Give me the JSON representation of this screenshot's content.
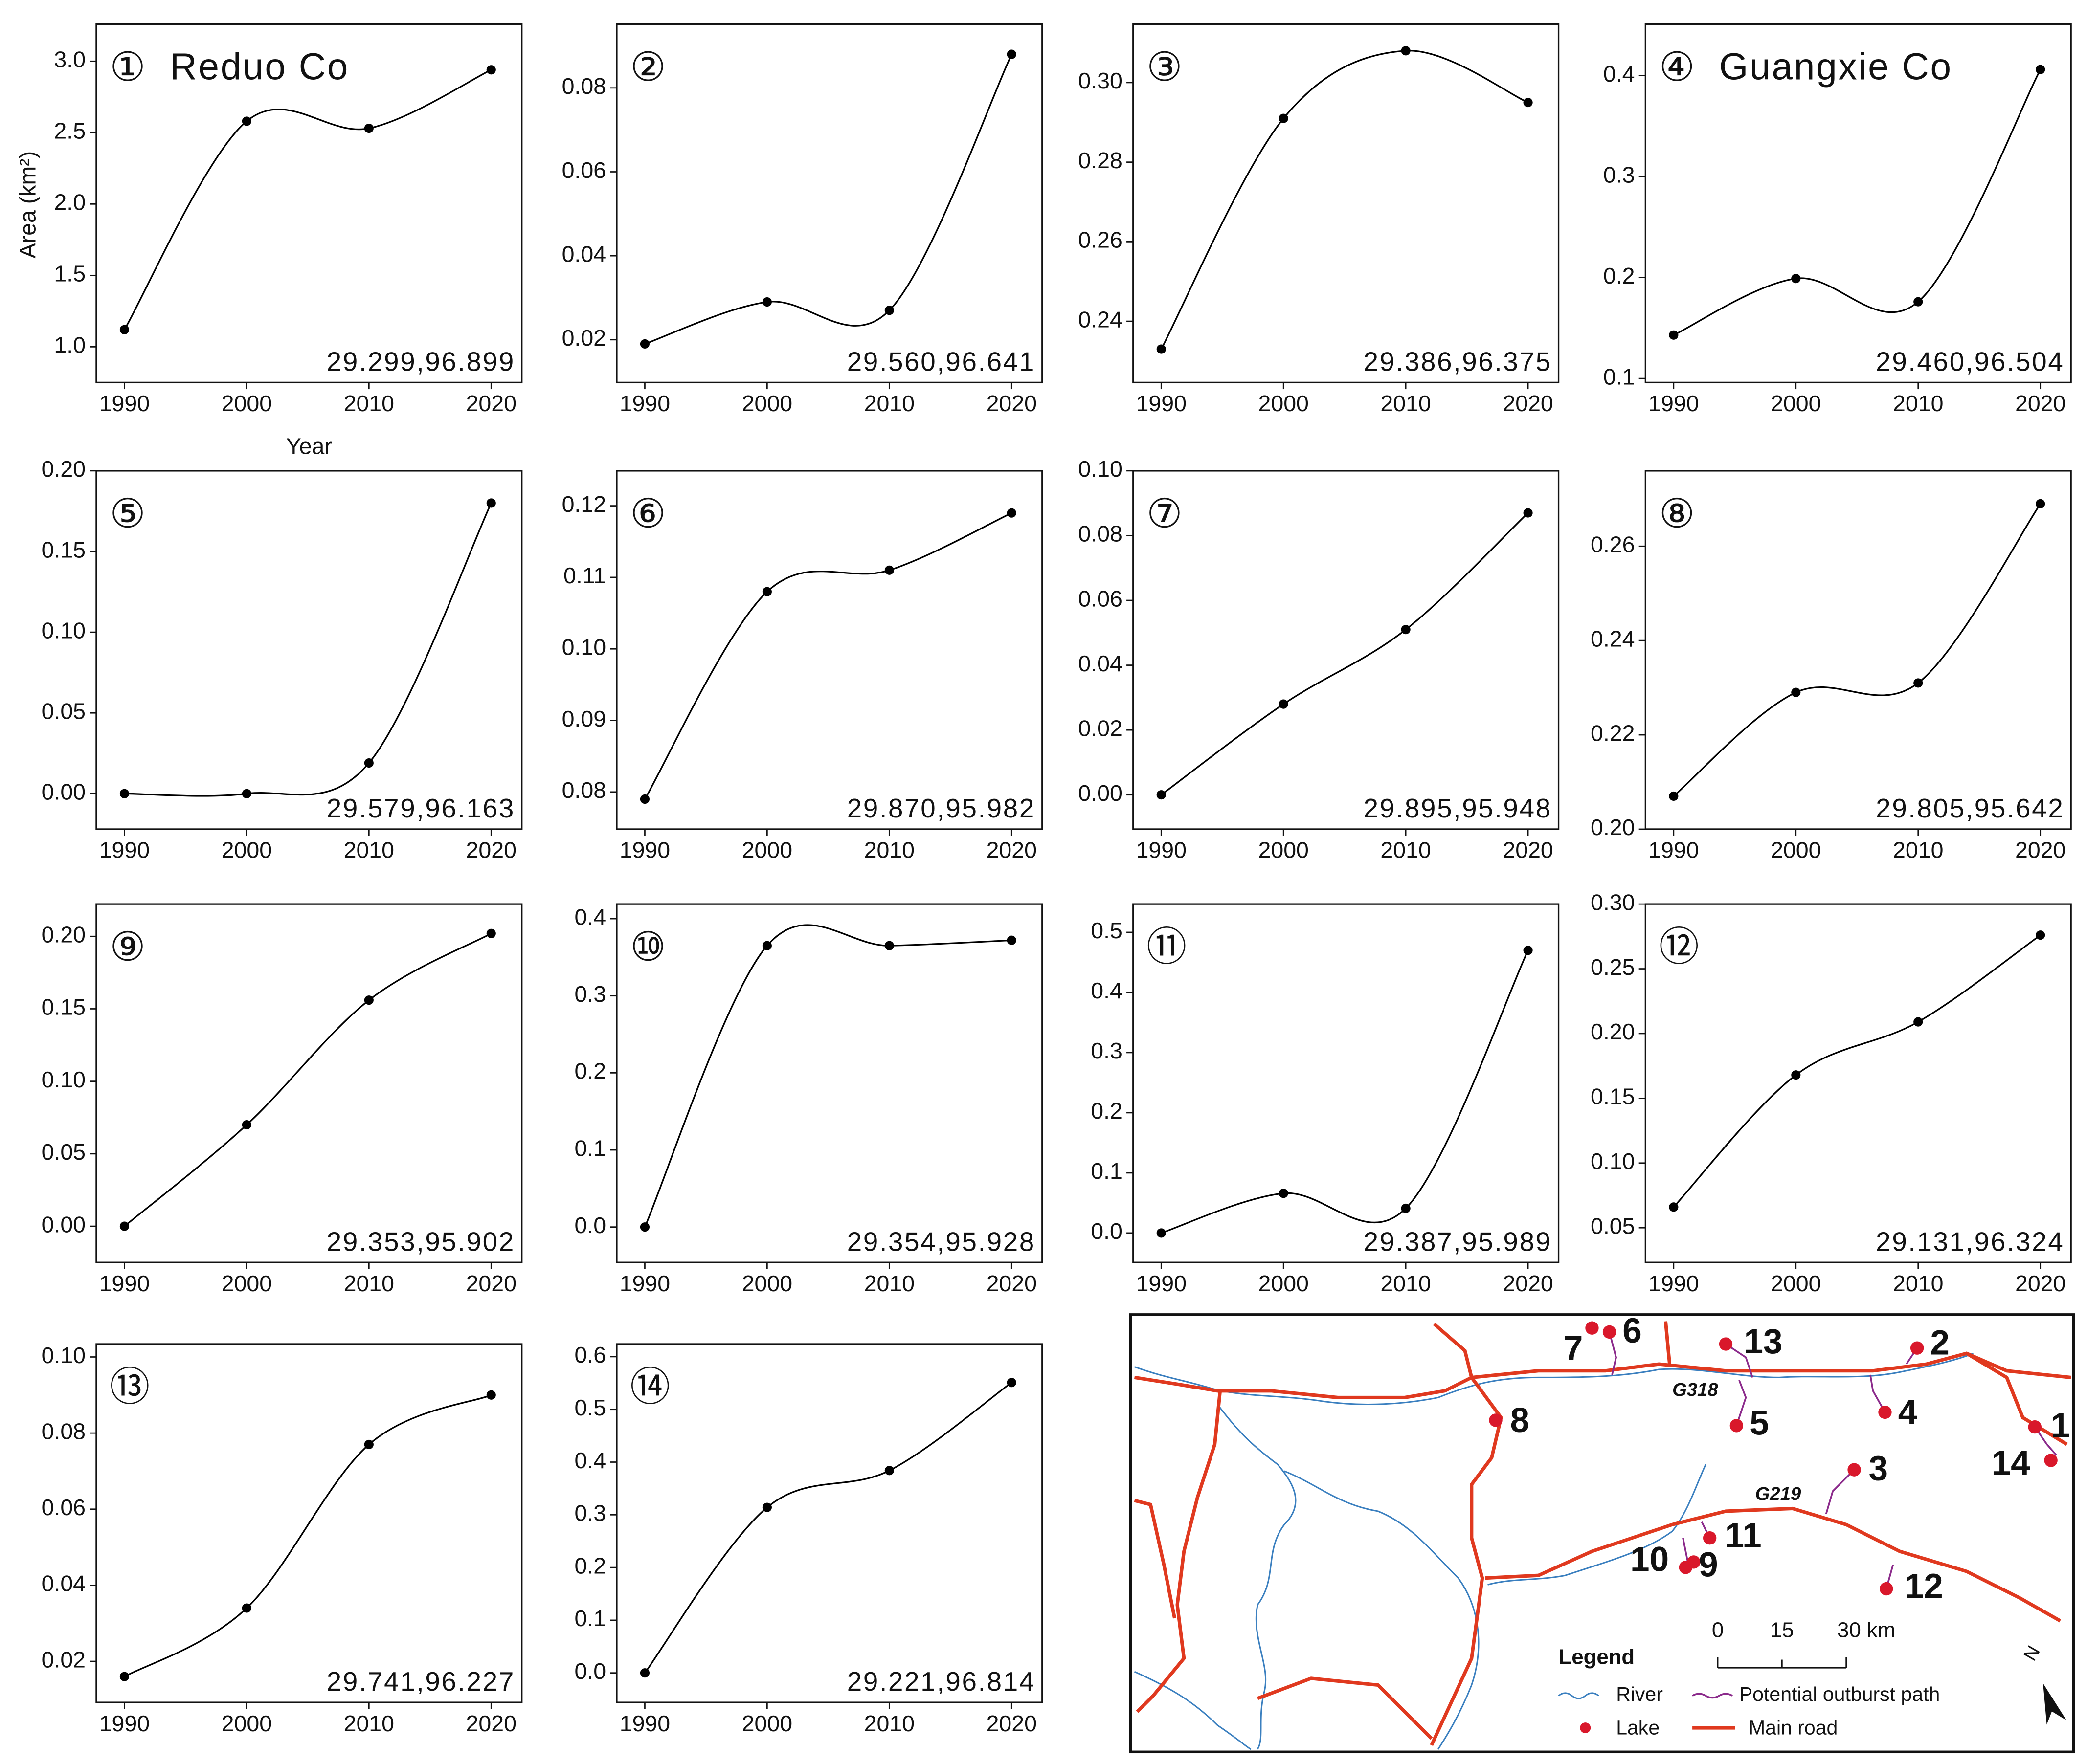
{
  "chart_data": [
    {
      "type": "line",
      "label": "①",
      "title": "Reduo Co",
      "annotation": "29.299,96.899",
      "ylabel": "Area (km²)",
      "xlabel": "Year",
      "x": [
        1990,
        2000,
        2010,
        2020
      ],
      "values": [
        1.12,
        2.58,
        2.53,
        2.94
      ],
      "color": "#000000",
      "xlim": [
        1987.7,
        2022.5
      ],
      "xticks": [
        1990,
        2000,
        2010,
        2020
      ],
      "ylim": [
        0.75,
        3.26
      ],
      "yticks": [
        {
          "value": 1,
          "label": "1.0"
        },
        1.5,
        {
          "value": 2,
          "label": "2.0"
        },
        2.5,
        {
          "value": 3,
          "label": "3.0"
        }
      ]
    },
    {
      "type": "line",
      "label": "②",
      "annotation": "29.560,96.641",
      "x": [
        1990,
        2000,
        2010,
        2020
      ],
      "values": [
        0.019,
        0.029,
        0.027,
        0.088
      ],
      "color": "#000000",
      "xlim": [
        1987.7,
        2022.5
      ],
      "xticks": [
        1990,
        2000,
        2010,
        2020
      ],
      "ylim": [
        0.0098,
        0.0952
      ],
      "yticks": [
        0.02,
        0.04,
        0.06,
        0.08
      ]
    },
    {
      "type": "line",
      "label": "③",
      "annotation": "29.386,96.375",
      "x": [
        1990,
        2000,
        2010,
        2020
      ],
      "values": [
        0.233,
        0.291,
        0.308,
        0.295
      ],
      "color": "#000000",
      "xlim": [
        1987.7,
        2022.5
      ],
      "xticks": [
        1990,
        2000,
        2010,
        2020
      ],
      "ylim": [
        0.2246,
        0.3147
      ],
      "yticks": [
        0.24,
        0.26,
        0.28,
        {
          "value": 0.3,
          "label": "0.30"
        }
      ]
    },
    {
      "type": "line",
      "label": "④",
      "title": "Guangxie Co",
      "annotation": "29.460,96.504",
      "x": [
        1990,
        2000,
        2010,
        2020
      ],
      "values": [
        0.143,
        0.199,
        0.176,
        0.406
      ],
      "color": "#000000",
      "xlim": [
        1987.7,
        2022.5
      ],
      "xticks": [
        1990,
        2000,
        2010,
        2020
      ],
      "ylim": [
        0.096,
        0.451
      ],
      "yticks": [
        0.1,
        0.2,
        0.3,
        0.4
      ]
    },
    {
      "type": "line",
      "label": "⑤",
      "annotation": "29.579,96.163",
      "x": [
        1990,
        2000,
        2010,
        2020
      ],
      "values": [
        0,
        0,
        0.019,
        0.18
      ],
      "color": "#000000",
      "xlim": [
        1987.7,
        2022.5
      ],
      "xticks": [
        1990,
        2000,
        2010,
        2020
      ],
      "ylim": [
        -0.022,
        0.2
      ],
      "yticks": [
        {
          "value": 0,
          "label": "0.00"
        },
        0.05,
        {
          "value": 0.1,
          "label": "0.10"
        },
        0.15,
        {
          "value": 0.2,
          "label": "0.20"
        }
      ]
    },
    {
      "type": "line",
      "label": "⑥",
      "annotation": "29.870,95.982",
      "x": [
        1990,
        2000,
        2010,
        2020
      ],
      "values": [
        0.079,
        0.108,
        0.111,
        0.119
      ],
      "color": "#000000",
      "xlim": [
        1987.7,
        2022.5
      ],
      "xticks": [
        1990,
        2000,
        2010,
        2020
      ],
      "ylim": [
        0.0748,
        0.1249
      ],
      "yticks": [
        0.08,
        0.09,
        {
          "value": 0.1,
          "label": "0.10"
        },
        0.11,
        0.12
      ]
    },
    {
      "type": "line",
      "label": "⑦",
      "annotation": "29.895,95.948",
      "x": [
        1990,
        2000,
        2010,
        2020
      ],
      "values": [
        0,
        0.028,
        0.051,
        0.087
      ],
      "color": "#000000",
      "xlim": [
        1987.7,
        2022.5
      ],
      "xticks": [
        1990,
        2000,
        2010,
        2020
      ],
      "ylim": [
        -0.0106,
        0.1
      ],
      "yticks": [
        {
          "value": 0,
          "label": "0.00"
        },
        0.02,
        0.04,
        0.06,
        0.08,
        {
          "value": 0.1,
          "label": "0.10"
        }
      ]
    },
    {
      "type": "line",
      "label": "⑧",
      "annotation": "29.805,95.642",
      "x": [
        1990,
        2000,
        2010,
        2020
      ],
      "values": [
        0.207,
        0.229,
        0.231,
        0.269
      ],
      "color": "#000000",
      "xlim": [
        1987.7,
        2022.5
      ],
      "xticks": [
        1990,
        2000,
        2010,
        2020
      ],
      "ylim": [
        0.2,
        0.276
      ],
      "yticks": [
        {
          "value": 0.2,
          "label": "0.20"
        },
        0.22,
        0.24,
        0.26
      ]
    },
    {
      "type": "line",
      "label": "⑨",
      "annotation": "29.353,95.902",
      "x": [
        1990,
        2000,
        2010,
        2020
      ],
      "values": [
        0,
        0.07,
        0.156,
        0.202
      ],
      "color": "#000000",
      "xlim": [
        1987.7,
        2022.5
      ],
      "xticks": [
        1990,
        2000,
        2010,
        2020
      ],
      "ylim": [
        -0.025,
        0.2223
      ],
      "yticks": [
        {
          "value": 0,
          "label": "0.00"
        },
        0.05,
        {
          "value": 0.1,
          "label": "0.10"
        },
        0.15,
        {
          "value": 0.2,
          "label": "0.20"
        }
      ]
    },
    {
      "type": "line",
      "label": "⑩",
      "annotation": "29.354,95.928",
      "x": [
        1990,
        2000,
        2010,
        2020
      ],
      "values": [
        0,
        0.365,
        0.365,
        0.372
      ],
      "color": "#000000",
      "xlim": [
        1987.7,
        2022.5
      ],
      "xticks": [
        1990,
        2000,
        2010,
        2020
      ],
      "ylim": [
        -0.046,
        0.419
      ],
      "yticks": [
        {
          "value": 0,
          "label": "0.0"
        },
        0.1,
        0.2,
        0.3,
        0.4
      ]
    },
    {
      "type": "line",
      "label": "⑪",
      "annotation": "29.387,95.989",
      "x": [
        1990,
        2000,
        2010,
        2020
      ],
      "values": [
        0,
        0.066,
        0.041,
        0.47
      ],
      "color": "#000000",
      "xlim": [
        1987.7,
        2022.5
      ],
      "xticks": [
        1990,
        2000,
        2010,
        2020
      ],
      "ylim": [
        -0.049,
        0.547
      ],
      "yticks": [
        {
          "value": 0,
          "label": "0.0"
        },
        0.1,
        0.2,
        0.3,
        0.4,
        0.5
      ]
    },
    {
      "type": "line",
      "label": "⑫",
      "annotation": "29.131,96.324",
      "x": [
        1990,
        2000,
        2010,
        2020
      ],
      "values": [
        0.066,
        0.168,
        0.209,
        0.276
      ],
      "color": "#000000",
      "xlim": [
        1987.7,
        2022.5
      ],
      "xticks": [
        1990,
        2000,
        2010,
        2020
      ],
      "ylim": [
        0.0232,
        0.3
      ],
      "yticks": [
        0.05,
        {
          "value": 0.1,
          "label": "0.10"
        },
        0.15,
        {
          "value": 0.2,
          "label": "0.20"
        },
        0.25,
        {
          "value": 0.3,
          "label": "0.30"
        }
      ]
    },
    {
      "type": "line",
      "label": "⑬",
      "annotation": "29.741,96.227",
      "x": [
        1990,
        2000,
        2010,
        2020
      ],
      "values": [
        0.016,
        0.034,
        0.077,
        0.09
      ],
      "color": "#000000",
      "xlim": [
        1987.7,
        2022.5
      ],
      "xticks": [
        1990,
        2000,
        2010,
        2020
      ],
      "ylim": [
        0.0092,
        0.1034
      ],
      "yticks": [
        0.02,
        0.04,
        0.06,
        0.08,
        {
          "value": 0.1,
          "label": "0.10"
        }
      ]
    },
    {
      "type": "line",
      "label": "⑭",
      "annotation": "29.221,96.814",
      "x": [
        1990,
        2000,
        2010,
        2020
      ],
      "values": [
        0,
        0.314,
        0.384,
        0.551
      ],
      "color": "#000000",
      "xlim": [
        1987.7,
        2022.5
      ],
      "xticks": [
        1990,
        2000,
        2010,
        2020
      ],
      "ylim": [
        -0.056,
        0.624
      ],
      "yticks": [
        {
          "value": 0,
          "label": "0.0"
        },
        0.1,
        0.2,
        0.3,
        0.4,
        0.5,
        0.6
      ]
    }
  ],
  "map": {
    "lakes": [
      "1",
      "2",
      "3",
      "4",
      "5",
      "6",
      "7",
      "8",
      "9",
      "10",
      "11",
      "12",
      "13",
      "14"
    ],
    "roads": [
      "G318",
      "G219"
    ],
    "legend": {
      "title": "Legend",
      "river": "River",
      "path": "Potential outburst path",
      "lake": "Lake",
      "road": "Main road"
    },
    "scale": [
      "0",
      "15",
      "30 km"
    ],
    "north": "N"
  }
}
